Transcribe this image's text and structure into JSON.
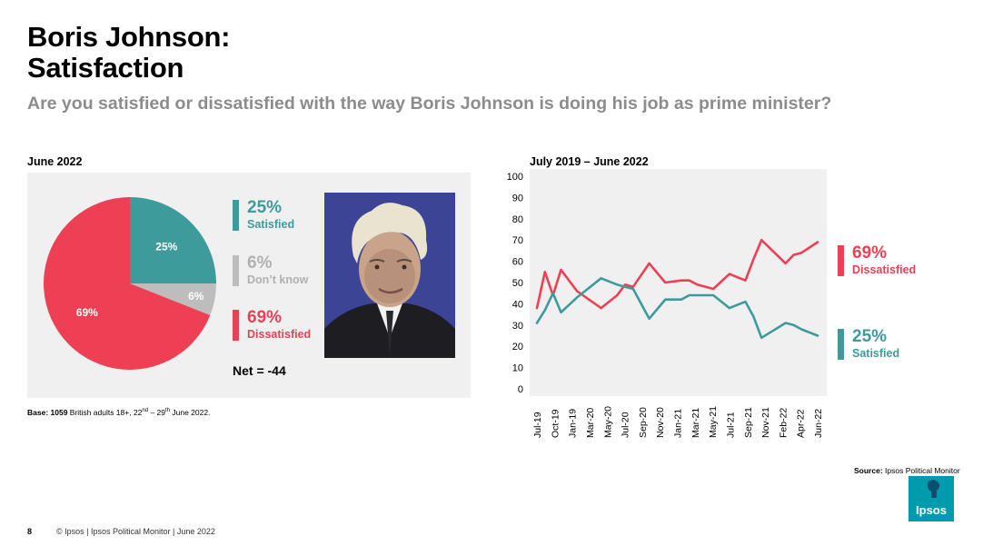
{
  "title_line1": "Boris Johnson:",
  "title_line2": "Satisfaction",
  "question": "Are you satisfied or dissatisfied with the way Boris Johnson is doing his job as prime minister?",
  "left_panel": {
    "label": "June 2022",
    "legend": [
      {
        "pct": "25%",
        "name": "Satisfied",
        "color": "#3d9b9b"
      },
      {
        "pct": "6%",
        "name": "Don’t know",
        "color": "#bdbdbd"
      },
      {
        "pct": "69%",
        "name": "Dissatisfied",
        "color": "#ee4055"
      }
    ],
    "net": "Net = -44",
    "base_bold": "Base: 1059",
    "base_text": " British adults 18+, 22",
    "base_sup1": "nd",
    "base_mid": " – 29",
    "base_sup2": "th",
    "base_end": " June 2022."
  },
  "right_panel": {
    "label": "July 2019 – June 2022",
    "end_labels": {
      "dissatisfied": {
        "pct": "69%",
        "name": "Dissatisfied"
      },
      "satisfied": {
        "pct": "25%",
        "name": "Satisfied"
      }
    }
  },
  "chart_data": [
    {
      "type": "pie",
      "title": "June 2022",
      "labels": [
        "Satisfied",
        "Don't know",
        "Dissatisfied"
      ],
      "values": [
        25,
        6,
        69
      ],
      "data_labels": [
        "25%",
        "6%",
        "69%"
      ],
      "colors": [
        "#3d9b9b",
        "#bdbdbd",
        "#ee4055"
      ]
    },
    {
      "type": "line",
      "title": "July 2019 – June 2022",
      "xlabel": "",
      "ylabel": "",
      "ylim": [
        0,
        100
      ],
      "yticks": [
        0,
        10,
        20,
        30,
        40,
        50,
        60,
        70,
        80,
        90,
        100
      ],
      "grid": false,
      "x_tick_labels": [
        "Jul-19",
        "Oct-19",
        "Jan-19",
        "Mar-20",
        "May-20",
        "Jul-20",
        "Sep-20",
        "Nov-20",
        "Jan-21",
        "Mar-21",
        "May-21",
        "Jul-21",
        "Sep-21",
        "Nov-21",
        "Feb-22",
        "Apr-22",
        "Jun-22"
      ],
      "series": [
        {
          "name": "Dissatisfied",
          "color": "#ee4055",
          "points": [
            [
              "Jul-19",
              38
            ],
            [
              "Aug-19",
              55
            ],
            [
              "Sep-19",
              44
            ],
            [
              "Oct-19",
              56
            ],
            [
              "Dec-19",
              46
            ],
            [
              "Mar-20",
              38
            ],
            [
              "May-20",
              44
            ],
            [
              "Jun-20",
              49
            ],
            [
              "Jul-20",
              48
            ],
            [
              "Sep-20",
              59
            ],
            [
              "Nov-20",
              50
            ],
            [
              "Jan-21",
              51
            ],
            [
              "Feb-21",
              51
            ],
            [
              "Mar-21",
              49
            ],
            [
              "May-21",
              47
            ],
            [
              "Jul-21",
              54
            ],
            [
              "Sep-21",
              51
            ],
            [
              "Oct-21",
              61
            ],
            [
              "Nov-21",
              70
            ],
            [
              "Feb-22",
              59
            ],
            [
              "Mar-22",
              63
            ],
            [
              "Apr-22",
              64
            ],
            [
              "Jun-22",
              69
            ]
          ]
        },
        {
          "name": "Satisfied",
          "color": "#3d9b9b",
          "points": [
            [
              "Jul-19",
              31
            ],
            [
              "Aug-19",
              37
            ],
            [
              "Sep-19",
              45
            ],
            [
              "Oct-19",
              36
            ],
            [
              "Dec-19",
              43
            ],
            [
              "Mar-20",
              52
            ],
            [
              "May-20",
              49
            ],
            [
              "Jun-20",
              48
            ],
            [
              "Jul-20",
              47
            ],
            [
              "Sep-20",
              33
            ],
            [
              "Nov-20",
              42
            ],
            [
              "Jan-21",
              42
            ],
            [
              "Feb-21",
              44
            ],
            [
              "Mar-21",
              44
            ],
            [
              "May-21",
              44
            ],
            [
              "Jul-21",
              38
            ],
            [
              "Sep-21",
              41
            ],
            [
              "Oct-21",
              34
            ],
            [
              "Nov-21",
              24
            ],
            [
              "Feb-22",
              31
            ],
            [
              "Mar-22",
              30
            ],
            [
              "Apr-22",
              28
            ],
            [
              "Jun-22",
              25
            ]
          ]
        }
      ]
    }
  ],
  "source_bold": "Source:",
  "source_text": " Ipsos  Political Monitor",
  "logo_text": "Ipsos",
  "footer_page": "8",
  "footer_text": "© Ipsos | Ipsos  Political Monitor | June 2022"
}
